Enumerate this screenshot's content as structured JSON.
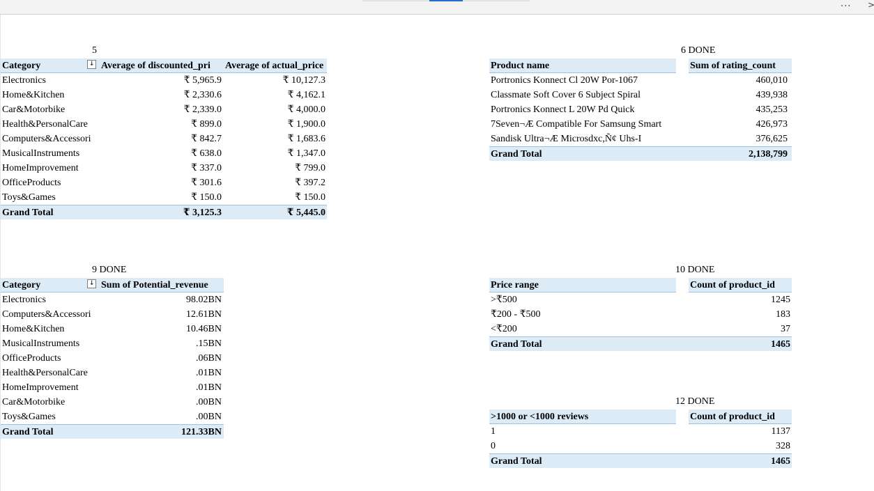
{
  "window": {
    "more_label": "...",
    "chevron": ">"
  },
  "pivot5": {
    "title": "5",
    "headers": [
      "Category",
      "Average of discounted_pri",
      "Average of actual_price"
    ],
    "filter_glyph": "↓",
    "rows": [
      {
        "label": "Electronics",
        "v1": "₹ 5,965.9",
        "v2": "₹ 10,127.3"
      },
      {
        "label": "Home&Kitchen",
        "v1": "₹ 2,330.6",
        "v2": "₹ 4,162.1"
      },
      {
        "label": "Car&Motorbike",
        "v1": "₹ 2,339.0",
        "v2": "₹ 4,000.0"
      },
      {
        "label": "Health&PersonalCare",
        "v1": "₹ 899.0",
        "v2": "₹ 1,900.0"
      },
      {
        "label": "Computers&Accessori",
        "v1": "₹ 842.7",
        "v2": "₹ 1,683.6"
      },
      {
        "label": "MusicalInstruments",
        "v1": "₹ 638.0",
        "v2": "₹ 1,347.0"
      },
      {
        "label": "HomeImprovement",
        "v1": "₹ 337.0",
        "v2": "₹ 799.0"
      },
      {
        "label": "OfficeProducts",
        "v1": "₹ 301.6",
        "v2": "₹ 397.2"
      },
      {
        "label": "Toys&Games",
        "v1": "₹ 150.0",
        "v2": "₹ 150.0"
      }
    ],
    "total": {
      "label": "Grand Total",
      "v1": "₹ 3,125.3",
      "v2": "₹ 5,445.0"
    }
  },
  "pivot6": {
    "title": "6 DONE",
    "headers": [
      "Product name",
      "Sum of rating_count"
    ],
    "filter_glyph": "↓▾",
    "rows": [
      {
        "label": "Portronics Konnect Cl 20W Por-1067",
        "v1": "460,010"
      },
      {
        "label": "Classmate Soft Cover 6 Subject Spiral",
        "v1": "439,938"
      },
      {
        "label": "Portronics Konnect L 20W Pd Quick",
        "v1": "435,253"
      },
      {
        "label": "7Seven¬Æ Compatible For Samsung Smart",
        "v1": "426,973"
      },
      {
        "label": "Sandisk Ultra¬Æ Microsdxc,Ñ¢ Uhs-I",
        "v1": "376,625"
      }
    ],
    "total": {
      "label": "Grand Total",
      "v1": "2,138,799"
    }
  },
  "pivot9": {
    "title": "9 DONE",
    "headers": [
      "Category",
      "Sum of Potential_revenue"
    ],
    "filter_glyph": "↓",
    "rows": [
      {
        "label": "Electronics",
        "v1": "98.02BN"
      },
      {
        "label": "Computers&Accessori",
        "v1": "12.61BN"
      },
      {
        "label": "Home&Kitchen",
        "v1": "10.46BN"
      },
      {
        "label": "MusicalInstruments",
        "v1": ".15BN"
      },
      {
        "label": "OfficeProducts",
        "v1": ".06BN"
      },
      {
        "label": "Health&PersonalCare",
        "v1": ".01BN"
      },
      {
        "label": "HomeImprovement",
        "v1": ".01BN"
      },
      {
        "label": "Car&Motorbike",
        "v1": ".00BN"
      },
      {
        "label": "Toys&Games",
        "v1": ".00BN"
      }
    ],
    "total": {
      "label": "Grand Total",
      "v1": "121.33BN"
    }
  },
  "pivot10": {
    "title": "10 DONE",
    "headers": [
      "Price range",
      "Count of product_id"
    ],
    "filter_glyph": "↓",
    "rows": [
      {
        "label": ">₹500",
        "v1": "1245"
      },
      {
        "label": "₹200 - ₹500",
        "v1": "183"
      },
      {
        "label": "<₹200",
        "v1": "37"
      }
    ],
    "total": {
      "label": "Grand Total",
      "v1": "1465"
    }
  },
  "pivot12": {
    "title": "12 DONE",
    "headers": [
      ">1000 or <1000 reviews",
      "Count of product_id"
    ],
    "filter_glyph": "▾",
    "rows": [
      {
        "label": "1",
        "v1": "1137"
      },
      {
        "label": "0",
        "v1": "328"
      }
    ],
    "total": {
      "label": "Grand Total",
      "v1": "1465"
    }
  }
}
